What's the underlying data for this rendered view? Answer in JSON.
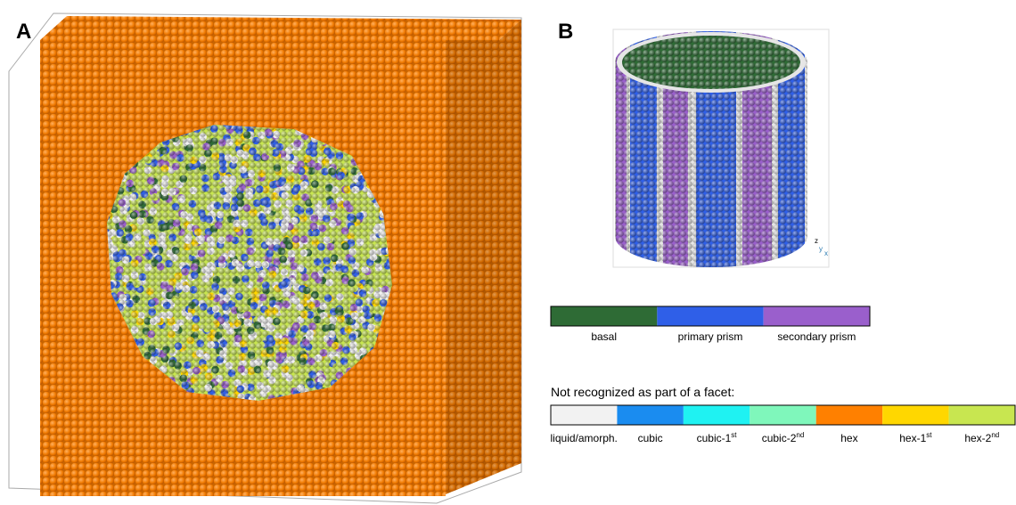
{
  "panel_a": {
    "label": "A"
  },
  "panel_b": {
    "label": "B",
    "axes": [
      "z",
      "y",
      "x"
    ]
  },
  "facet_legend": {
    "items": [
      {
        "label": "basal",
        "color": "#2e6b35"
      },
      {
        "label": "primary prism",
        "color": "#2f5fe8"
      },
      {
        "label": "secondary prism",
        "color": "#9a5fcc"
      }
    ]
  },
  "other_legend": {
    "title": "Not recognized as part of a facet:",
    "items": [
      {
        "label": "liquid/amorph.",
        "color": "#f2f2f2"
      },
      {
        "label": "cubic",
        "color": "#1a8cf0"
      },
      {
        "label": "cubic-1",
        "sup": "st",
        "color": "#1ff2f2"
      },
      {
        "label": "cubic-2",
        "sup": "nd",
        "color": "#7ff7bb"
      },
      {
        "label": "hex",
        "color": "#ff8000"
      },
      {
        "label": "hex-1",
        "sup": "st",
        "color": "#ffd700"
      },
      {
        "label": "hex-2",
        "sup": "nd",
        "color": "#c8e650"
      }
    ]
  }
}
